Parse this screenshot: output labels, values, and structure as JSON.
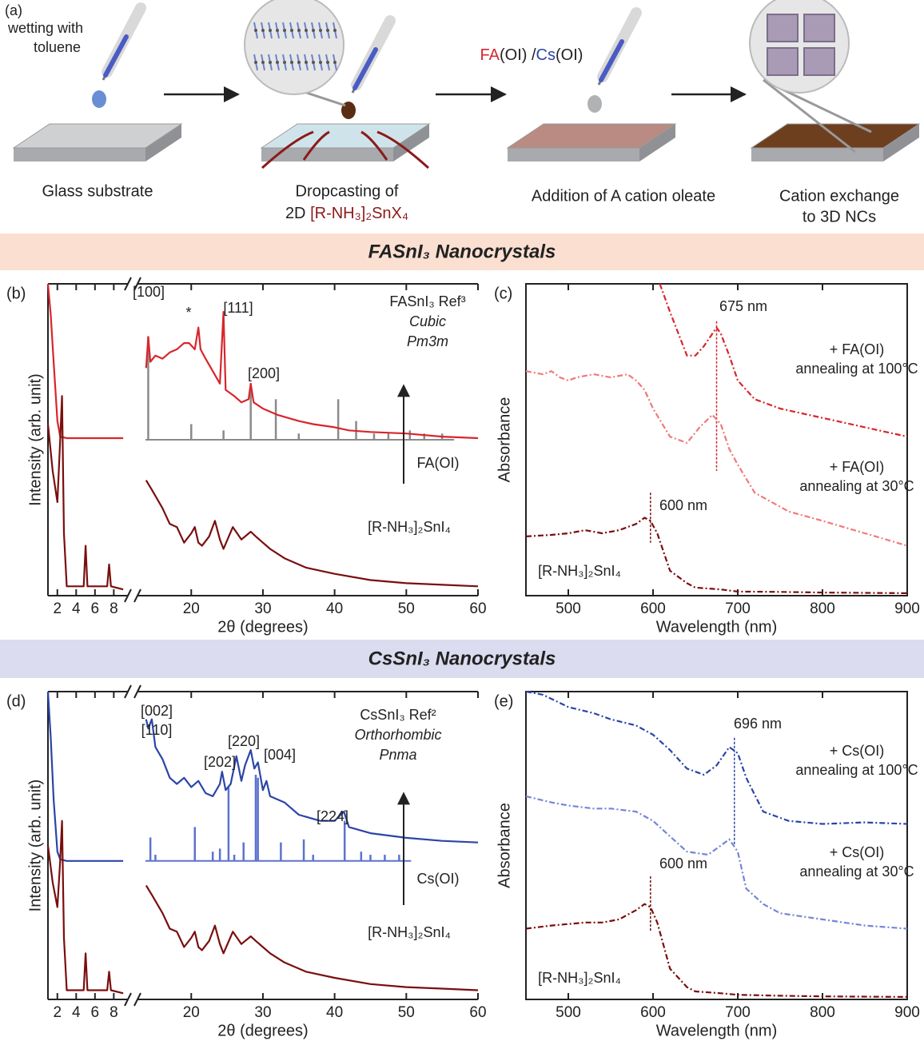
{
  "figure": {
    "panel_a": {
      "label": "(a)",
      "wetting": [
        "wetting with",
        "toluene"
      ],
      "step1": "Glass substrate",
      "step2": [
        "Dropcasting of",
        "2D",
        "[R-NH₃]₂SnX₄"
      ],
      "reagent": [
        "FA",
        "(OI) /",
        "Cs",
        "(OI)"
      ],
      "step3": "Addition of A cation oleate",
      "step4": [
        "Cation exchange",
        "to 3D NCs"
      ]
    },
    "banners": [
      "FASnI₃ Nanocrystals",
      "CsSnI₃ Nanocrystals"
    ]
  },
  "chart_data": [
    {
      "type": "xrd",
      "panel_label": "(b)",
      "xlabel": "2θ (degrees)",
      "ylabel": "Intensity (arb. unit)",
      "xlim": [
        1,
        60
      ],
      "xbreak": [
        9.5,
        12.5
      ],
      "xticks": [
        2,
        4,
        6,
        8,
        20,
        30,
        40,
        50,
        60
      ],
      "ylim": [
        0,
        100
      ],
      "annotations": [
        "[100]",
        "*",
        "[111]",
        "[200]"
      ],
      "series": [
        {
          "name": "FA(OI)",
          "color": "#d7262c",
          "x": [
            1,
            1.3,
            1.6,
            2,
            2.3,
            3,
            5,
            9,
            11,
            13.7,
            14,
            14.3,
            15,
            16,
            17,
            18,
            19,
            19.7,
            20.5,
            21,
            21.3,
            22,
            23,
            24,
            24.5,
            24.8,
            26,
            27,
            28,
            28.3,
            28.7,
            30,
            32,
            35,
            37,
            40,
            42,
            45,
            50,
            55,
            60
          ],
          "values": [
            100,
            90,
            75,
            56,
            51,
            50.5,
            50.5,
            50.5,
            null,
            73,
            83,
            75,
            77,
            76,
            78,
            79,
            81,
            81,
            79,
            86,
            79,
            76,
            72,
            68,
            91,
            66,
            64,
            62,
            63,
            68,
            62,
            60,
            58,
            56,
            55,
            54,
            53,
            52.5,
            52,
            51,
            50.5
          ]
        },
        {
          "name": "[R-NH₃]₂SnI₄",
          "color": "#7a0e0e",
          "x": [
            1,
            1.5,
            2,
            2.3,
            2.5,
            2.7,
            3,
            4.8,
            5,
            5.2,
            7.3,
            7.5,
            7.7,
            9,
            11,
            13.7,
            14.5,
            16,
            17,
            18,
            19,
            20,
            20.5,
            21,
            21.5,
            22.5,
            23.3,
            24,
            24.5,
            25.8,
            27,
            28.3,
            29,
            30,
            31,
            33,
            36,
            40,
            45,
            50,
            55,
            60
          ],
          "values": [
            55,
            40,
            30,
            50,
            64,
            20,
            3,
            3,
            16,
            3,
            3,
            10,
            3,
            2,
            null,
            37,
            34,
            28,
            23,
            22,
            17,
            20,
            22,
            17,
            16,
            19,
            24,
            18,
            15,
            22,
            18,
            20.5,
            19,
            17,
            15,
            12,
            9,
            7,
            5,
            4,
            3.5,
            3
          ]
        }
      ],
      "reference": {
        "name": "FASnI₃ Ref³",
        "lattice": "Cubic",
        "space_group": "Pm3m",
        "color": "#8a8a8a",
        "baseline": 50,
        "x": [
          14,
          20,
          24.5,
          28.3,
          31.8,
          35,
          40.5,
          43,
          45.5,
          47.5,
          50.5,
          52.5,
          55
        ],
        "values": [
          83,
          55,
          53,
          68,
          63,
          52,
          63,
          56,
          52,
          52,
          53,
          52,
          52
        ]
      }
    },
    {
      "type": "absorbance",
      "panel_label": "(c)",
      "xlabel": "Wavelength (nm)",
      "ylabel": "Absorbance",
      "xlim": [
        450,
        900
      ],
      "xticks": [
        500,
        600,
        700,
        800,
        900
      ],
      "ylim": [
        0,
        100
      ],
      "series": [
        {
          "name": "+ FA(OI)",
          "condition": "annealing at 100°C",
          "color": "#d7262c",
          "peak": {
            "value": 675,
            "label": "675 nm"
          },
          "x": [
            608,
            620,
            630,
            640,
            650,
            660,
            670,
            675,
            680,
            690,
            700,
            720,
            750,
            800,
            850,
            900
          ],
          "values": [
            100,
            91,
            84,
            77,
            77,
            80,
            84,
            86,
            84,
            77,
            69,
            63,
            60,
            57,
            54,
            51
          ]
        },
        {
          "name": "+ FA(OI)",
          "condition": "annealing at 30°C",
          "color": "#f07a78",
          "x": [
            450,
            470,
            480,
            490,
            500,
            510,
            530,
            550,
            570,
            580,
            590,
            600,
            620,
            640,
            655,
            670,
            680,
            690,
            700,
            720,
            760,
            800,
            850,
            900
          ],
          "values": [
            72,
            71,
            72,
            70,
            69,
            70,
            71,
            70,
            71,
            69,
            66,
            60,
            51,
            49,
            54,
            58,
            55,
            47,
            42,
            33,
            27,
            24,
            20,
            16
          ]
        },
        {
          "name": "[R-NH₃]₂SnI₄",
          "color": "#7a0e0e",
          "peak": {
            "value": 597,
            "label": "600 nm"
          },
          "x": [
            450,
            480,
            500,
            520,
            540,
            560,
            580,
            590,
            597,
            605,
            620,
            640,
            650,
            680,
            700,
            750,
            800,
            900
          ],
          "values": [
            19,
            19.5,
            20,
            21,
            20,
            21,
            23,
            25,
            24,
            20,
            8,
            4,
            2.6,
            2,
            1.3,
            1.2,
            1,
            0.8
          ]
        }
      ]
    },
    {
      "type": "xrd",
      "panel_label": "(d)",
      "xlabel": "2θ (degrees)",
      "ylabel": "Intensity (arb. unit)",
      "xlim": [
        1,
        60
      ],
      "xbreak": [
        9.5,
        12.5
      ],
      "xticks": [
        2,
        4,
        6,
        8,
        20,
        30,
        40,
        50,
        60
      ],
      "ylim": [
        0,
        100
      ],
      "annotations": [
        "[002]",
        "[110]",
        "[202]",
        "[220]",
        "[004]",
        "[224]"
      ],
      "series": [
        {
          "name": "Cs(OI)",
          "color": "#2b45a8",
          "x": [
            1,
            1.3,
            1.6,
            2,
            2.3,
            3,
            5,
            9,
            11,
            13.7,
            14,
            14.5,
            15,
            16,
            17,
            18,
            19,
            20,
            21,
            22,
            23,
            24,
            24.3,
            24.8,
            25.5,
            26.3,
            27,
            27.5,
            28.3,
            28.8,
            29.3,
            30,
            30.5,
            31,
            33,
            35,
            38,
            40,
            41.3,
            42,
            45,
            50,
            55,
            60
          ],
          "values": [
            100,
            85,
            65,
            48,
            45.5,
            45,
            45,
            45,
            null,
            91,
            88,
            91,
            82,
            78,
            72,
            70,
            72,
            69,
            71,
            67,
            66,
            70,
            74,
            68,
            70,
            79,
            71,
            76,
            81,
            75,
            77,
            68,
            71,
            66,
            64,
            60,
            58,
            58,
            61,
            56,
            54,
            52.5,
            51.5,
            51
          ]
        },
        {
          "name": "[R-NH₃]₂SnI₄",
          "color": "#7a0e0e",
          "x": [
            1,
            1.5,
            2,
            2.3,
            2.5,
            2.7,
            3,
            4.8,
            5,
            5.2,
            7.3,
            7.5,
            7.7,
            9,
            11,
            13.7,
            14.5,
            16,
            17,
            18,
            19,
            20,
            20.5,
            21,
            21.5,
            22.5,
            23.3,
            24,
            24.5,
            25.8,
            27,
            28.3,
            29,
            30,
            31,
            33,
            36,
            40,
            45,
            50,
            55,
            60
          ],
          "values": [
            50,
            38,
            30,
            45,
            58,
            20,
            3,
            3,
            15,
            3,
            3,
            9,
            3,
            2,
            null,
            37,
            34,
            28,
            23,
            22,
            17,
            20,
            22,
            17,
            16,
            19,
            24,
            18,
            15,
            22,
            18,
            20.5,
            19,
            17,
            15,
            12,
            9,
            7,
            5,
            4,
            3.5,
            3
          ]
        }
      ],
      "reference": {
        "name": "CsSnI₃ Ref²",
        "lattice": "Orthorhombic",
        "space_group": "Pnma",
        "color": "#5d72cf",
        "baseline": 45,
        "x": [
          14.3,
          15,
          20.5,
          23,
          24,
          25.2,
          26,
          27.3,
          29,
          29.3,
          32.5,
          35.7,
          37,
          41.4,
          43.7,
          45,
          47,
          49
        ],
        "values": [
          52.6,
          47,
          56,
          48,
          49,
          69,
          47,
          51,
          73,
          72,
          51,
          52,
          47,
          58,
          48,
          47,
          47,
          47
        ]
      }
    },
    {
      "type": "absorbance",
      "panel_label": "(e)",
      "xlabel": "Wavelength (nm)",
      "ylabel": "Absorbance",
      "xlim": [
        450,
        900
      ],
      "xticks": [
        500,
        600,
        700,
        800,
        900
      ],
      "ylim": [
        0,
        100
      ],
      "series": [
        {
          "name": "+ Cs(OI)",
          "condition": "annealing at 100°C",
          "color": "#2b45a8",
          "peak": {
            "value": 696,
            "label": "696 nm"
          },
          "x": [
            450,
            470,
            500,
            530,
            550,
            580,
            600,
            620,
            640,
            660,
            675,
            690,
            700,
            710,
            730,
            760,
            800,
            850,
            900
          ],
          "values": [
            100,
            99,
            95,
            93,
            91,
            89,
            86,
            81,
            75,
            73,
            76,
            82,
            80,
            72,
            61,
            58,
            57,
            57.5,
            57
          ]
        },
        {
          "name": "+ Cs(OI)",
          "condition": "annealing at 30°C",
          "color": "#7486d6",
          "x": [
            450,
            480,
            500,
            530,
            550,
            580,
            600,
            620,
            640,
            665,
            680,
            690,
            700,
            710,
            730,
            750,
            800,
            850,
            900
          ],
          "values": [
            66,
            64,
            63,
            62,
            62,
            61,
            58,
            53,
            48,
            47,
            50,
            52,
            48,
            36,
            31,
            28,
            26,
            24,
            23
          ]
        },
        {
          "name": "[R-NH₃]₂SnI₄",
          "color": "#7a0e0e",
          "peak": {
            "value": 597,
            "label": "600 nm"
          },
          "x": [
            450,
            480,
            500,
            520,
            540,
            560,
            580,
            590,
            597,
            605,
            620,
            640,
            650,
            680,
            700,
            750,
            800,
            900
          ],
          "values": [
            23,
            24,
            24.5,
            25,
            25,
            26,
            29,
            31,
            30,
            25,
            10,
            4,
            2.6,
            2,
            1.5,
            1.2,
            1,
            0.8
          ]
        }
      ]
    }
  ]
}
